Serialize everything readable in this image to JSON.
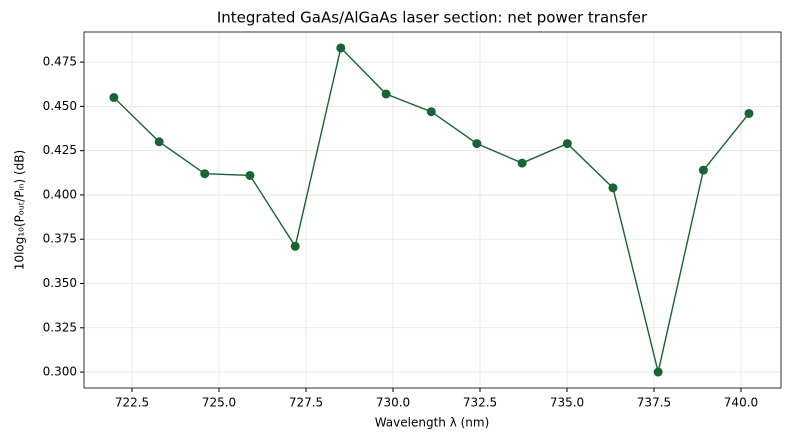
{
  "chart_data": {
    "type": "line",
    "title": "Integrated GaAs/AlGaAs laser section: net power transfer",
    "x_label": "Wavelength λ (nm)",
    "y_label": "10log₁₀(Pₒᵤₜ/Pᵢₙ) (dB)",
    "x": [
      721.98,
      723.28,
      724.59,
      725.89,
      727.19,
      728.5,
      729.8,
      731.1,
      732.41,
      733.71,
      735.01,
      736.32,
      737.62,
      738.92,
      740.23
    ],
    "series": [
      {
        "color": "#1a6334",
        "values": [
          0.455,
          0.43,
          0.412,
          0.411,
          0.371,
          0.483,
          0.457,
          0.447,
          0.429,
          0.418,
          0.429,
          0.404,
          0.3,
          0.414,
          0.446
        ]
      }
    ],
    "xlim": [
      721.12,
      741.15
    ],
    "ylim": [
      0.291,
      0.492
    ],
    "xticks": [
      {
        "value": 722.5,
        "label": "722.5"
      },
      {
        "value": 725,
        "label": "725.0"
      },
      {
        "value": 727.5,
        "label": "727.5"
      },
      {
        "value": 730,
        "label": "730.0"
      },
      {
        "value": 732.5,
        "label": "732.5"
      },
      {
        "value": 735,
        "label": "735.0"
      },
      {
        "value": 737.5,
        "label": "737.5"
      },
      {
        "value": 740,
        "label": "740.0"
      }
    ],
    "yticks": [
      {
        "value": 0.3,
        "label": "0.300"
      },
      {
        "value": 0.325,
        "label": "0.325"
      },
      {
        "value": 0.35,
        "label": "0.350"
      },
      {
        "value": 0.375,
        "label": "0.375"
      },
      {
        "value": 0.4,
        "label": "0.400"
      },
      {
        "value": 0.425,
        "label": "0.425"
      },
      {
        "value": 0.45,
        "label": "0.450"
      },
      {
        "value": 0.475,
        "label": "0.475"
      }
    ],
    "grid": true
  }
}
